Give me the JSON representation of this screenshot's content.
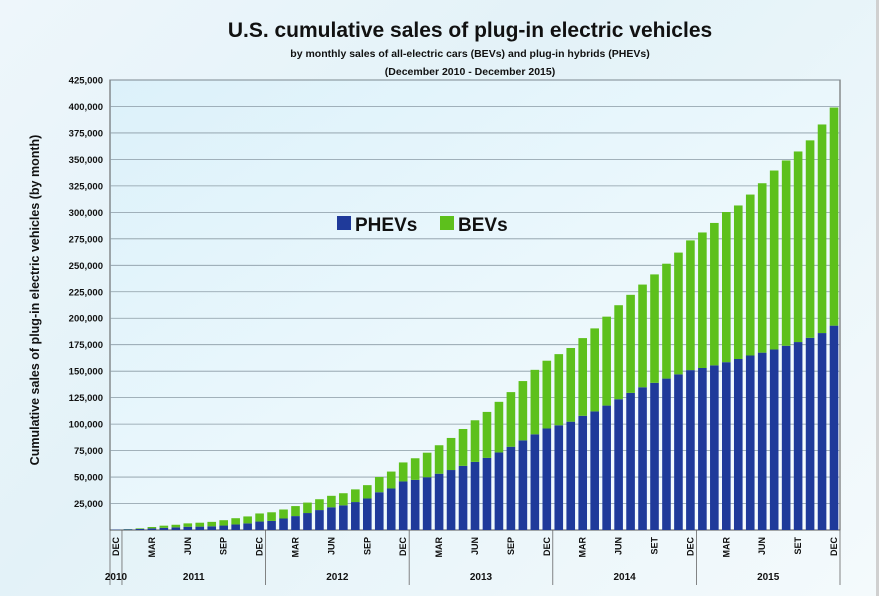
{
  "chart_data": {
    "type": "bar",
    "stacked": true,
    "title": "U.S. cumulative sales of plug-in electric vehicles",
    "subtitle": "by monthly sales of all-electric cars (BEVs) and plug-in hybrids (PHEVs)",
    "subtitle2": "(December 2010 - December 2015)",
    "ylabel": "Cumulative sales of plug-in electric vehicles (by month)",
    "xlabel": "",
    "ylim": [
      0,
      425000
    ],
    "yticks": [
      25000,
      50000,
      75000,
      100000,
      125000,
      150000,
      175000,
      200000,
      225000,
      250000,
      275000,
      300000,
      325000,
      350000,
      375000,
      400000,
      425000
    ],
    "ytick_labels": [
      "25,000",
      "50,000",
      "75,000",
      "100,000",
      "125,000",
      "150,000",
      "175,000",
      "200,000",
      "225,000",
      "250,000",
      "275,000",
      "300,000",
      "325,000",
      "350,000",
      "375,000",
      "400,000",
      "425,000"
    ],
    "grid": true,
    "legend_position": "upper-left",
    "month_tick_labels": [
      "DEC",
      "MAR",
      "JUN",
      "SEP",
      "DEC",
      "MAR",
      "JUN",
      "SEP",
      "DEC",
      "MAR",
      "JUN",
      "SEP",
      "DEC",
      "MAR",
      "JUN",
      "SET",
      "DEC",
      "MAR",
      "JUN",
      "SET",
      "DEC"
    ],
    "month_tick_indices": [
      0,
      3,
      6,
      9,
      12,
      15,
      18,
      21,
      24,
      27,
      30,
      33,
      36,
      39,
      42,
      45,
      48,
      51,
      54,
      57,
      60
    ],
    "year_labels": [
      "2010",
      "2011",
      "2012",
      "2013",
      "2014",
      "2015"
    ],
    "categories": [
      "Dec 2010",
      "Jan 2011",
      "Feb 2011",
      "Mar 2011",
      "Apr 2011",
      "May 2011",
      "Jun 2011",
      "Jul 2011",
      "Aug 2011",
      "Sep 2011",
      "Oct 2011",
      "Nov 2011",
      "Dec 2011",
      "Jan 2012",
      "Feb 2012",
      "Mar 2012",
      "Apr 2012",
      "May 2012",
      "Jun 2012",
      "Jul 2012",
      "Aug 2012",
      "Sep 2012",
      "Oct 2012",
      "Nov 2012",
      "Dec 2012",
      "Jan 2013",
      "Feb 2013",
      "Mar 2013",
      "Apr 2013",
      "May 2013",
      "Jun 2013",
      "Jul 2013",
      "Aug 2013",
      "Sep 2013",
      "Oct 2013",
      "Nov 2013",
      "Dec 2013",
      "Jan 2014",
      "Feb 2014",
      "Mar 2014",
      "Apr 2014",
      "May 2014",
      "Jun 2014",
      "Jul 2014",
      "Aug 2014",
      "Sep 2014",
      "Oct 2014",
      "Nov 2014",
      "Dec 2014",
      "Jan 2015",
      "Feb 2015",
      "Mar 2015",
      "Apr 2015",
      "May 2015",
      "Jun 2015",
      "Jul 2015",
      "Aug 2015",
      "Sep 2015",
      "Oct 2015",
      "Nov 2015",
      "Dec 2015"
    ],
    "series": [
      {
        "name": "PHEVs",
        "color": "#1f3a9a",
        "values": [
          350,
          670,
          950,
          1550,
          2040,
          2500,
          3060,
          3190,
          3490,
          4210,
          5240,
          6260,
          7980,
          8580,
          10860,
          13140,
          16020,
          18820,
          21440,
          23280,
          26390,
          29780,
          35670,
          39230,
          45860,
          47350,
          49820,
          53150,
          56640,
          60600,
          64330,
          68130,
          73250,
          78630,
          84660,
          90370,
          95880,
          98900,
          102300,
          107850,
          112000,
          117500,
          123500,
          129500,
          134800,
          139000,
          143000,
          147000,
          151000,
          153000,
          155500,
          158500,
          161500,
          164800,
          167500,
          170500,
          174000,
          177500,
          181500,
          186000,
          193000
        ]
      },
      {
        "name": "BEVs",
        "color": "#5dc01c",
        "values": [
          20,
          230,
          560,
          1280,
          2050,
          2450,
          3200,
          3700,
          4200,
          5050,
          5900,
          6550,
          7640,
          8150,
          8500,
          9460,
          9870,
          10240,
          10850,
          11450,
          11980,
          12580,
          14400,
          15960,
          17950,
          20400,
          23200,
          26900,
          30300,
          34800,
          39300,
          43400,
          47800,
          51600,
          56000,
          60900,
          64000,
          67200,
          69600,
          73400,
          78400,
          84000,
          88800,
          92600,
          97000,
          102400,
          108500,
          115000,
          122500,
          128000,
          134500,
          141800,
          145000,
          152000,
          160000,
          169000,
          175000,
          180000,
          186500,
          197000,
          206000
        ]
      }
    ]
  }
}
